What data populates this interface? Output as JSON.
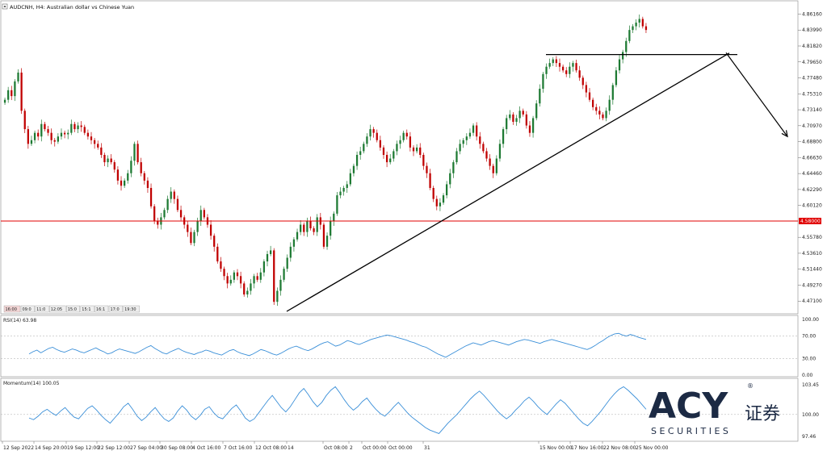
{
  "window": {
    "title": "AUDCNH, H4:  Australian dollar vs Chinese Yuan"
  },
  "chart_data": [
    {
      "type": "candlestick",
      "symbol": "AUDCNH",
      "timeframe": "H4",
      "yticks": [
        "4.86160",
        "4.83990",
        "4.81820",
        "4.79650",
        "4.77480",
        "4.75310",
        "4.73140",
        "4.70970",
        "4.68800",
        "4.66630",
        "4.64460",
        "4.62290",
        "4.60120",
        "4.55780",
        "4.53610",
        "4.51440",
        "4.49270",
        "4.47100"
      ],
      "ylim": [
        4.457,
        4.872
      ],
      "xticks": [
        "12 Sep 2022",
        "14 Sep 20:00",
        "19 Sep 12:00",
        "22 Sep 12:00",
        "27 Sep 04:00",
        "30 Sep 08:00",
        "4 Oct 16:00",
        "7 Oct 16:00",
        "12 Oct 08:00",
        "14",
        "Oct 08:00",
        "2",
        "Oct 00:00",
        "Oct 00:00",
        "31",
        "15 Nov 00:00",
        "17 Nov 16:00",
        "22 Nov 08:00",
        "25 Nov 00:00"
      ],
      "horizontal_line": {
        "value": 4.58,
        "label": "4.58000",
        "color": "#e00000"
      },
      "resistance_line": {
        "from": 4.8065,
        "to": 4.8065
      },
      "trendline": {
        "from": 4.457,
        "to": 4.8085
      },
      "arrow": {
        "from": 4.809,
        "to": 4.695
      },
      "closes": [
        4.745,
        4.758,
        4.75,
        4.77,
        4.782,
        4.73,
        4.705,
        4.685,
        4.69,
        4.7,
        4.695,
        4.712,
        4.705,
        4.7,
        4.69,
        4.688,
        4.695,
        4.7,
        4.698,
        4.7,
        4.712,
        4.705,
        4.71,
        4.708,
        4.7,
        4.695,
        4.69,
        4.685,
        4.68,
        4.67,
        4.66,
        4.665,
        4.66,
        4.65,
        4.635,
        4.628,
        4.635,
        4.645,
        4.662,
        4.685,
        4.66,
        4.645,
        4.635,
        4.625,
        4.6,
        4.58,
        4.575,
        4.585,
        4.595,
        4.61,
        4.62,
        4.61,
        4.595,
        4.585,
        4.575,
        4.565,
        4.55,
        4.565,
        4.58,
        4.595,
        4.585,
        4.575,
        4.56,
        4.545,
        4.525,
        4.515,
        4.505,
        4.495,
        4.5,
        4.51,
        4.505,
        4.495,
        4.48,
        4.485,
        4.495,
        4.505,
        4.5,
        4.51,
        4.525,
        4.535,
        4.54,
        4.47,
        4.485,
        4.5,
        4.515,
        4.53,
        4.545,
        4.555,
        4.565,
        4.575,
        4.565,
        4.58,
        4.57,
        4.565,
        4.585,
        4.575,
        4.545,
        4.56,
        4.58,
        4.59,
        4.615,
        4.62,
        4.625,
        4.63,
        4.645,
        4.655,
        4.67,
        4.675,
        4.685,
        4.695,
        4.705,
        4.7,
        4.69,
        4.68,
        4.67,
        4.66,
        4.665,
        4.675,
        4.685,
        4.69,
        4.7,
        4.695,
        4.68,
        4.675,
        4.68,
        4.67,
        4.655,
        4.645,
        4.625,
        4.61,
        4.6,
        4.605,
        4.615,
        4.63,
        4.645,
        4.66,
        4.675,
        4.685,
        4.69,
        4.695,
        4.7,
        4.71,
        4.695,
        4.685,
        4.675,
        4.665,
        4.655,
        4.645,
        4.665,
        4.685,
        4.705,
        4.72,
        4.725,
        4.715,
        4.72,
        4.73,
        4.725,
        4.71,
        4.7,
        4.72,
        4.74,
        4.76,
        4.78,
        4.79,
        4.795,
        4.8,
        4.795,
        4.79,
        4.785,
        4.78,
        4.79,
        4.795,
        4.785,
        4.775,
        4.765,
        4.755,
        4.745,
        4.735,
        4.73,
        4.725,
        4.72,
        4.73,
        4.745,
        4.765,
        4.785,
        4.8,
        4.81,
        4.825,
        4.84,
        4.845,
        4.85,
        4.855,
        4.845,
        4.84
      ]
    },
    {
      "type": "line",
      "name": "RSI(14) 63.98",
      "yticks": [
        "100.00",
        "70.00",
        "30.00",
        "0.00"
      ],
      "ylim": [
        0,
        100
      ],
      "levels": [
        70,
        30
      ],
      "values": [
        38,
        42,
        45,
        40,
        44,
        48,
        50,
        46,
        43,
        41,
        44,
        47,
        45,
        42,
        40,
        43,
        46,
        49,
        45,
        42,
        38,
        40,
        44,
        47,
        45,
        43,
        41,
        39,
        42,
        46,
        50,
        53,
        48,
        44,
        40,
        38,
        42,
        45,
        48,
        44,
        41,
        39,
        37,
        40,
        42,
        45,
        43,
        40,
        38,
        36,
        40,
        44,
        46,
        42,
        39,
        37,
        35,
        38,
        42,
        46,
        44,
        41,
        38,
        36,
        39,
        43,
        47,
        50,
        52,
        49,
        46,
        44,
        47,
        51,
        55,
        58,
        60,
        56,
        52,
        54,
        58,
        62,
        60,
        57,
        55,
        58,
        61,
        64,
        66,
        68,
        70,
        72,
        71,
        69,
        67,
        65,
        63,
        60,
        58,
        55,
        52,
        50,
        46,
        42,
        38,
        35,
        32,
        36,
        40,
        44,
        48,
        52,
        55,
        58,
        56,
        54,
        57,
        60,
        62,
        60,
        58,
        56,
        54,
        57,
        60,
        62,
        64,
        63,
        61,
        59,
        57,
        60,
        62,
        64,
        62,
        60,
        58,
        56,
        54,
        52,
        50,
        48,
        46,
        49,
        53,
        58,
        62,
        67,
        71,
        74,
        75,
        72,
        70,
        73,
        71,
        68,
        66,
        64
      ]
    },
    {
      "type": "line",
      "name": "Momentum(14) 100.05",
      "yticks": [
        "103.45",
        "100.00",
        "97.46"
      ],
      "ylim": [
        97.1,
        103.8
      ],
      "levels": [
        100.0
      ],
      "values": [
        99.6,
        99.4,
        99.8,
        100.3,
        100.6,
        100.2,
        99.9,
        100.4,
        100.8,
        100.2,
        99.7,
        99.5,
        100.1,
        100.7,
        101.0,
        100.5,
        99.9,
        99.4,
        99.0,
        99.6,
        100.2,
        100.9,
        101.3,
        100.6,
        99.8,
        99.3,
        99.7,
        100.3,
        100.8,
        100.1,
        99.5,
        99.2,
        99.6,
        100.4,
        101.0,
        100.5,
        99.8,
        99.4,
        99.9,
        100.6,
        100.9,
        100.2,
        99.7,
        99.5,
        100.1,
        100.7,
        101.1,
        100.4,
        99.6,
        99.2,
        99.5,
        100.2,
        100.9,
        101.6,
        102.2,
        101.5,
        100.8,
        100.3,
        100.9,
        101.7,
        102.5,
        103.0,
        102.3,
        101.5,
        100.9,
        101.4,
        102.2,
        102.8,
        103.2,
        102.5,
        101.7,
        101.0,
        100.5,
        100.9,
        101.5,
        101.9,
        101.2,
        100.6,
        100.1,
        99.8,
        100.3,
        100.9,
        101.4,
        100.8,
        100.2,
        99.7,
        99.3,
        98.9,
        98.5,
        98.2,
        98.0,
        97.8,
        98.4,
        99.0,
        99.5,
        100.0,
        100.6,
        101.2,
        101.8,
        102.3,
        102.7,
        102.2,
        101.6,
        101.0,
        100.4,
        99.9,
        99.5,
        99.9,
        100.5,
        101.0,
        101.6,
        102.0,
        101.5,
        100.9,
        100.4,
        100.0,
        100.6,
        101.2,
        101.7,
        101.3,
        100.7,
        100.1,
        99.5,
        99.0,
        98.7,
        99.2,
        99.8,
        100.4,
        101.1,
        101.8,
        102.4,
        102.9,
        103.2,
        102.8,
        102.3,
        101.8,
        101.2,
        100.6
      ]
    }
  ],
  "indicators": {
    "rsi_label": "RSI(14) 63.98",
    "momentum_label": "Momentum(14) 100.05"
  },
  "toolbar_chips": [
    "16:00",
    "09:0",
    "11:0",
    "12:05",
    "15:0",
    "15:1",
    "16:1",
    "17:0",
    "19:30"
  ],
  "logo": {
    "brand": "ACY",
    "registered": "®",
    "chinese": "证券",
    "tagline": "S E C U R I T I E S"
  },
  "colors": {
    "up": "#1e7a33",
    "down": "#c00000",
    "indicator": "#3a8fd8",
    "hline": "#e00000",
    "logo_dark": "#1c2a44"
  }
}
